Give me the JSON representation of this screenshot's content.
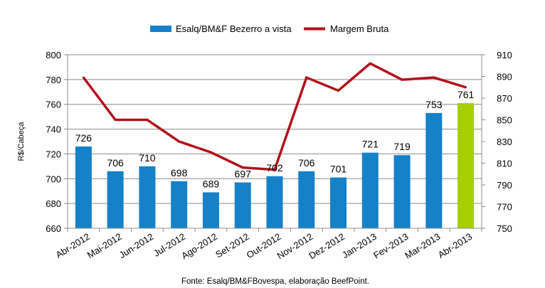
{
  "chart_data": {
    "type": "bar",
    "categories": [
      "Abr-2012",
      "Mai-2012",
      "Jun-2012",
      "Jul-2012",
      "Ago-2012",
      "Set-2012",
      "Out-2012",
      "Nov-2012",
      "Dez-2012",
      "Jan-2013",
      "Fev-2013",
      "Mar-2013",
      "Abr-2013"
    ],
    "series": [
      {
        "name": "Esalq/BM&F Bezerro a vista",
        "type": "bar",
        "axis": "left",
        "color": "#1481C8",
        "highlight_color": "#A6CE00",
        "highlight_index": 12,
        "values": [
          726,
          706,
          710,
          698,
          689,
          697,
          702,
          706,
          701,
          721,
          719,
          753,
          761
        ],
        "data_labels": [
          "726",
          "706",
          "710",
          "698",
          "689",
          "697",
          "702",
          "706",
          "701",
          "721",
          "719",
          "753",
          "761"
        ]
      },
      {
        "name": "Margem Bruta",
        "type": "line",
        "axis": "right",
        "color": "#B2121B",
        "values": [
          889,
          850,
          850,
          830,
          820,
          806,
          804,
          889,
          877,
          902,
          887,
          889,
          880
        ]
      }
    ],
    "ylabel": "R$/Cabeça",
    "ylim": [
      660,
      800
    ],
    "yticks": [
      "660",
      "680",
      "700",
      "720",
      "740",
      "760",
      "780",
      "800"
    ],
    "y2lim": [
      750,
      910
    ],
    "y2ticks": [
      "750",
      "770",
      "790",
      "810",
      "830",
      "850",
      "870",
      "890",
      "910"
    ],
    "grid": "horizontal",
    "legend_position": "top",
    "source": "Fonte: Esalq/BM&FBovespa, elaboração BeefPoint."
  }
}
